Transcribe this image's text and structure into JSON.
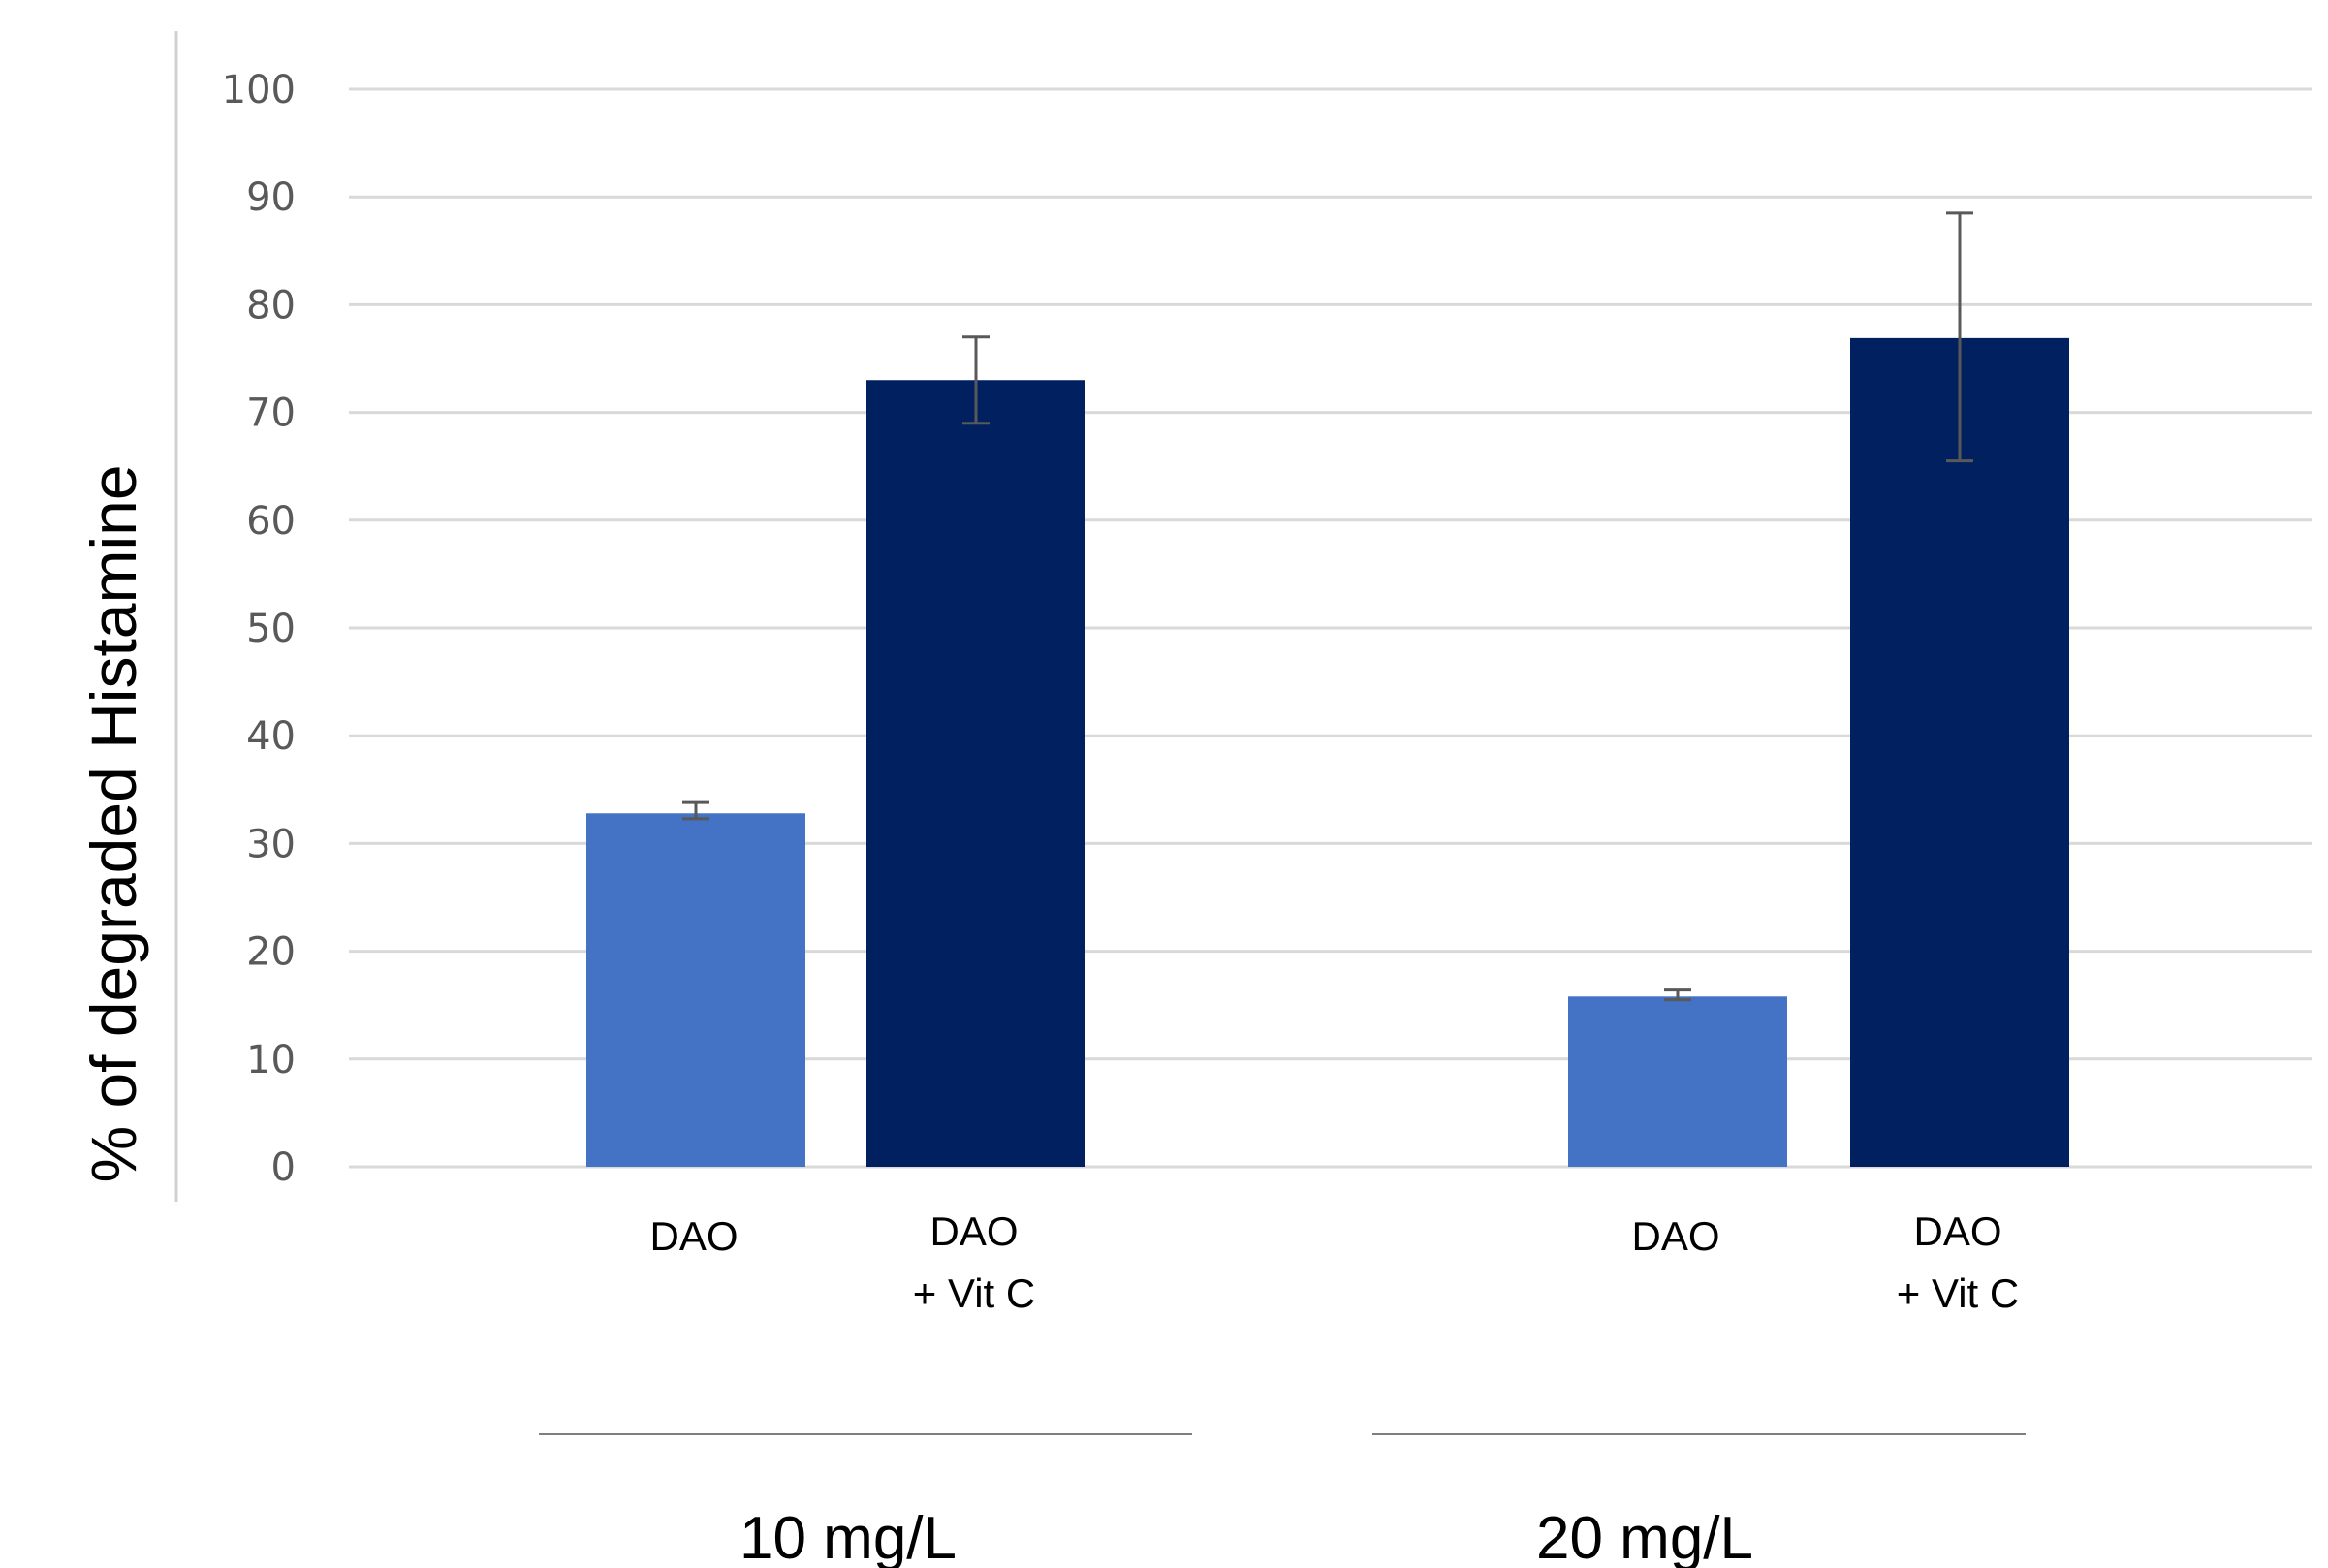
{
  "chart_data": {
    "type": "bar",
    "xlabel": "",
    "ylabel": "% of degraded Histamine",
    "ylim": [
      0,
      100
    ],
    "yticks": [
      0,
      10,
      20,
      30,
      40,
      50,
      60,
      70,
      80,
      90,
      100
    ],
    "grid": true,
    "legend": "none",
    "groups": [
      {
        "label": "10 mg/L",
        "bars": [
          {
            "category": [
              "DAO"
            ],
            "value": 32.8,
            "error": [
              32.3,
              33.8
            ],
            "color": "#4472c4"
          },
          {
            "category": [
              "DAO",
              "+ Vit C"
            ],
            "value": 73.0,
            "error": [
              69.0,
              77.0
            ],
            "color": "#002060"
          }
        ]
      },
      {
        "label": "20 mg/L",
        "bars": [
          {
            "category": [
              "DAO"
            ],
            "value": 15.8,
            "error": [
              15.5,
              16.4
            ],
            "color": "#4472c4"
          },
          {
            "category": [
              "DAO",
              "+ Vit C"
            ],
            "value": 76.9,
            "error": [
              65.5,
              88.5
            ],
            "color": "#002060"
          }
        ]
      }
    ]
  }
}
